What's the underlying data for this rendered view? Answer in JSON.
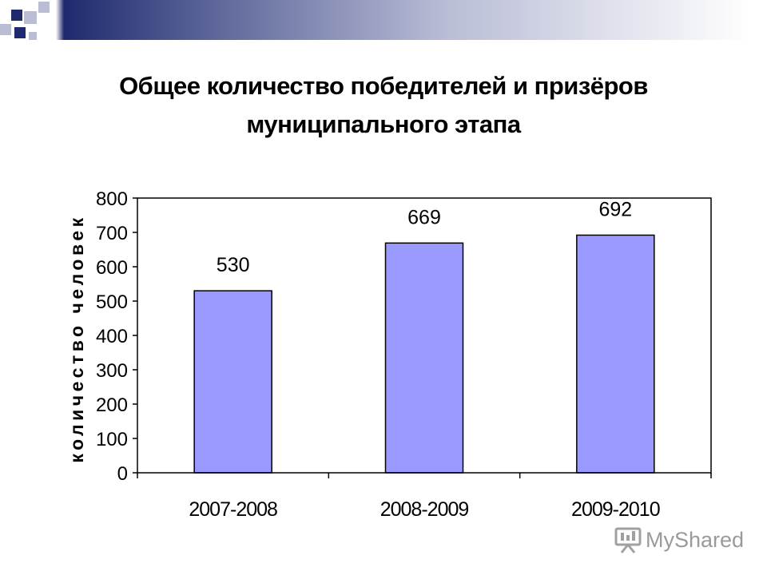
{
  "title_lines": [
    "Общее количество победителей и призёров",
    "муниципального этапа"
  ],
  "watermark": "MyShared",
  "colors": {
    "bar": "#9999ff",
    "header_dark": "#1f2a6e",
    "header_light": "#b9bdd6"
  },
  "chart_data": {
    "type": "bar",
    "title": "Общее количество победителей и призёров муниципального этапа",
    "categories": [
      "2007-2008",
      "2008-2009",
      "2009-2010"
    ],
    "values": [
      530,
      669,
      692
    ],
    "data_labels": [
      "530",
      "669",
      "692"
    ],
    "ylabel": "количество человек",
    "xlabel": "",
    "ylim": [
      0,
      800
    ],
    "yticks": [
      0,
      100,
      200,
      300,
      400,
      500,
      600,
      700,
      800
    ],
    "grid": false,
    "legend": false
  }
}
